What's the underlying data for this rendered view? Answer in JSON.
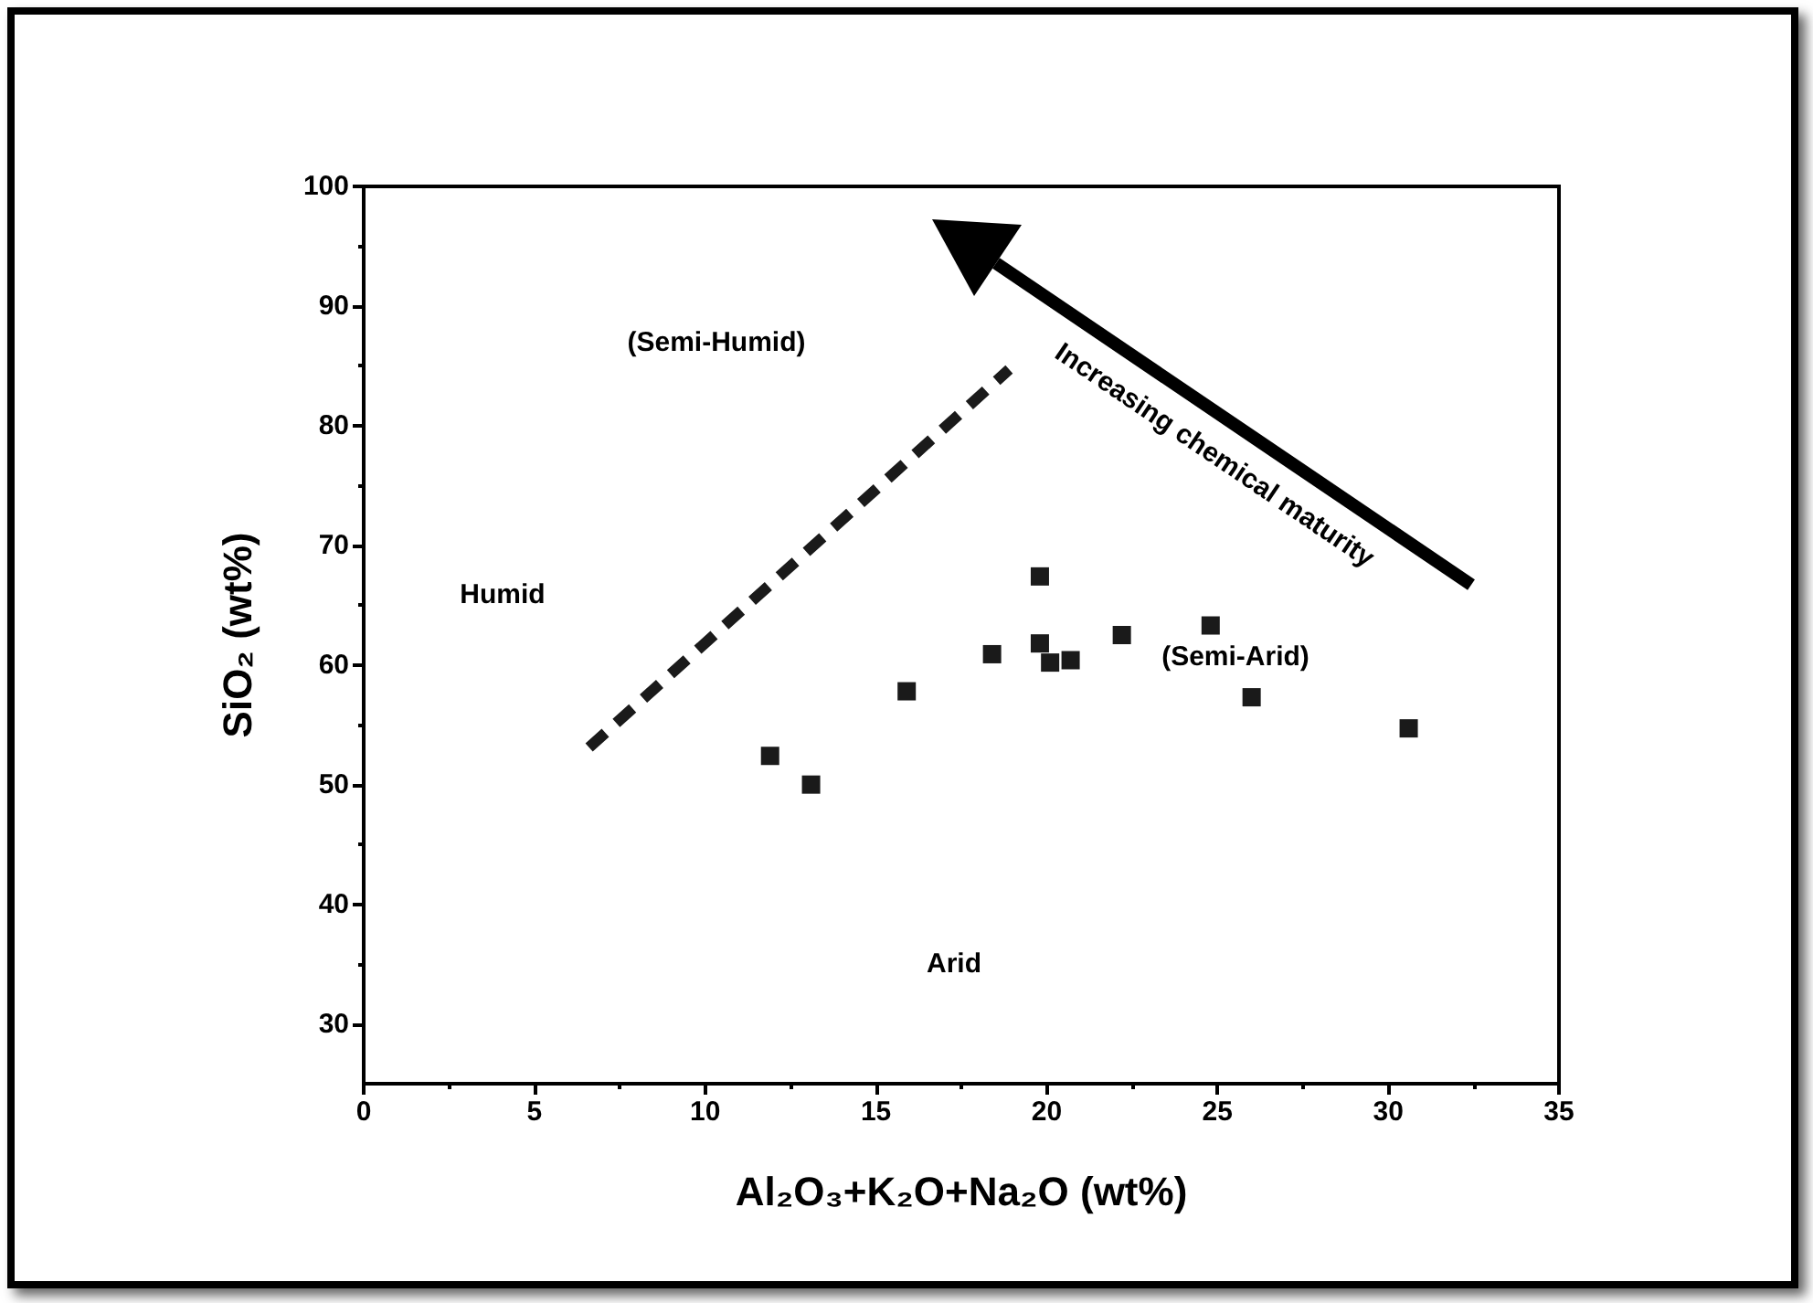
{
  "chart_data": {
    "type": "scatter",
    "xlabel": "Al₂O₃+K₂O+Na₂O (wt%)",
    "ylabel": "SiO₂ (wt%)",
    "xlim": [
      0,
      35
    ],
    "xticks": [
      0,
      5,
      10,
      15,
      20,
      25,
      30,
      35
    ],
    "ylim": [
      25,
      100
    ],
    "yticks": [
      30,
      40,
      50,
      60,
      70,
      80,
      90,
      100
    ],
    "grid": false,
    "series": [
      {
        "type": "scatter",
        "color": "#1a1a1a",
        "marker": "square",
        "x": [
          11.9,
          13.1,
          15.9,
          18.4,
          19.8,
          19.8,
          20.1,
          20.7,
          22.2,
          24.8,
          26.0,
          30.6
        ],
        "values": [
          52.4,
          50.0,
          57.8,
          60.9,
          67.4,
          61.8,
          60.2,
          60.4,
          62.5,
          63.3,
          57.3,
          54.7
        ]
      },
      {
        "type": "line",
        "color": "#1a1a1a",
        "marker": "none",
        "line_style": "dashed",
        "x": [
          6.6,
          18.9
        ],
        "values": [
          53.1,
          84.7
        ]
      }
    ],
    "annotations": [
      "Humid",
      "(Semi-Humid)",
      "(Semi-Arid)",
      "Arid",
      "Increasing chemical maturity"
    ]
  }
}
